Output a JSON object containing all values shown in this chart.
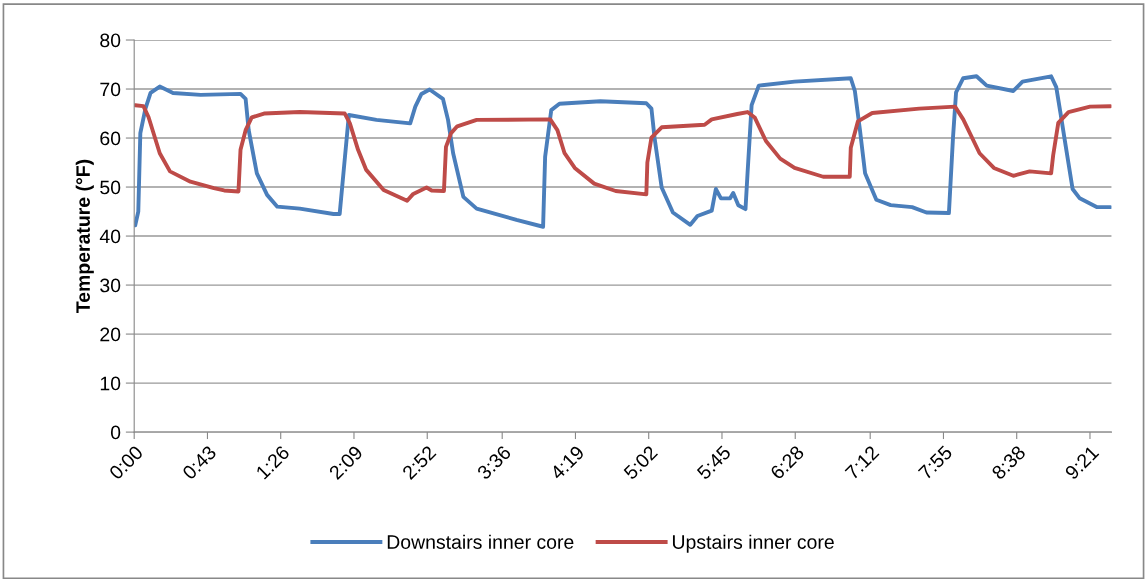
{
  "chart_data": {
    "type": "line",
    "ylabel": "Temperature (°F)",
    "xlim": [
      0,
      9.56
    ],
    "ylim": [
      0,
      80
    ],
    "yticks": [
      0,
      10,
      20,
      30,
      40,
      50,
      60,
      70,
      80
    ],
    "xticks": [
      {
        "value": 0,
        "label": "0:00"
      },
      {
        "value": 0.7167,
        "label": "0:43"
      },
      {
        "value": 1.4333,
        "label": "1:26"
      },
      {
        "value": 2.15,
        "label": "2:09"
      },
      {
        "value": 2.8667,
        "label": "2:52"
      },
      {
        "value": 3.6,
        "label": "3:36"
      },
      {
        "value": 4.3167,
        "label": "4:19"
      },
      {
        "value": 5.0333,
        "label": "5:02"
      },
      {
        "value": 5.75,
        "label": "5:45"
      },
      {
        "value": 6.4667,
        "label": "6:28"
      },
      {
        "value": 7.2,
        "label": "7:12"
      },
      {
        "value": 7.9167,
        "label": "7:55"
      },
      {
        "value": 8.6333,
        "label": "8:38"
      },
      {
        "value": 9.35,
        "label": "9:21"
      }
    ],
    "grid": "y",
    "legend": "bottom",
    "marker": "none",
    "line_style": "solid",
    "series": [
      {
        "name": "Downstairs inner core",
        "color": "#4a7ebb",
        "x": [
          0.01,
          0.04,
          0.06,
          0.11,
          0.16,
          0.25,
          0.38,
          0.65,
          1.04,
          1.09,
          1.12,
          1.2,
          1.3,
          1.4,
          1.62,
          1.95,
          2.01,
          2.05,
          2.1,
          2.37,
          2.7,
          2.75,
          2.81,
          2.89,
          3.02,
          3.07,
          3.12,
          3.22,
          3.35,
          3.74,
          4.0,
          4.02,
          4.08,
          4.16,
          4.56,
          5.01,
          5.06,
          5.09,
          5.16,
          5.27,
          5.44,
          5.51,
          5.65,
          5.69,
          5.74,
          5.83,
          5.86,
          5.91,
          5.98,
          6.0,
          6.04,
          6.11,
          6.46,
          7.01,
          7.05,
          7.1,
          7.15,
          7.26,
          7.4,
          7.61,
          7.75,
          7.97,
          8.01,
          8.04,
          8.11,
          8.24,
          8.34,
          8.6,
          8.69,
          8.97,
          9.02,
          9.06,
          9.11,
          9.18,
          9.25,
          9.42,
          9.55
        ],
        "values": [
          42.2,
          45,
          61,
          66,
          69.2,
          70.5,
          69.2,
          68.8,
          69,
          68,
          61.6,
          52.8,
          48.4,
          46,
          45.6,
          44.5,
          44.5,
          53.5,
          64.7,
          63.7,
          63,
          66.4,
          69,
          69.9,
          68,
          63.7,
          56.9,
          48,
          45.6,
          43.3,
          41.9,
          56.2,
          65.7,
          67,
          67.5,
          67.1,
          66,
          60.1,
          49.9,
          44.8,
          42.3,
          44.1,
          45.2,
          49.6,
          47.7,
          47.7,
          48.8,
          46.3,
          45.5,
          52.8,
          66.7,
          70.7,
          71.5,
          72.2,
          69.6,
          61.6,
          52.8,
          47.4,
          46.3,
          45.9,
          44.8,
          44.7,
          60.1,
          69.3,
          72.2,
          72.6,
          70.7,
          69.6,
          71.5,
          72.6,
          70.4,
          65.3,
          58.7,
          49.6,
          47.7,
          45.9,
          45.9
        ]
      },
      {
        "name": "Upstairs inner core",
        "color": "#be4b48",
        "x": [
          0.01,
          0.09,
          0.14,
          0.25,
          0.35,
          0.55,
          0.78,
          0.88,
          1.02,
          1.04,
          1.09,
          1.15,
          1.27,
          1.62,
          2.06,
          2.11,
          2.19,
          2.27,
          2.44,
          2.67,
          2.73,
          2.86,
          2.91,
          3.03,
          3.05,
          3.1,
          3.16,
          3.35,
          4.07,
          4.14,
          4.21,
          4.31,
          4.5,
          4.71,
          5.01,
          5.02,
          5.06,
          5.16,
          5.58,
          5.65,
          5.9,
          6.0,
          6.07,
          6.18,
          6.32,
          6.46,
          6.74,
          7.0,
          7.01,
          7.08,
          7.22,
          7.68,
          8.03,
          8.11,
          8.27,
          8.41,
          8.6,
          8.76,
          8.97,
          8.99,
          9.04,
          9.14,
          9.35,
          9.55
        ],
        "values": [
          66.7,
          66.5,
          64.3,
          56.9,
          53.2,
          51.1,
          49.8,
          49.3,
          49.1,
          57.6,
          61.6,
          64.2,
          65,
          65.3,
          65,
          63,
          57.6,
          53.5,
          49.4,
          47.2,
          48.6,
          49.9,
          49.3,
          49.2,
          58.2,
          61,
          62.4,
          63.7,
          63.8,
          61.6,
          56.9,
          53.9,
          50.7,
          49.2,
          48.5,
          55,
          60.1,
          62.2,
          62.7,
          63.8,
          64.9,
          65.3,
          64.2,
          59.4,
          55.8,
          53.9,
          52.1,
          52.1,
          58,
          63.4,
          65.1,
          66,
          66.4,
          63.8,
          56.9,
          53.9,
          52.3,
          53.2,
          52.8,
          56.5,
          63.1,
          65.3,
          66.4,
          66.5
        ]
      }
    ]
  }
}
